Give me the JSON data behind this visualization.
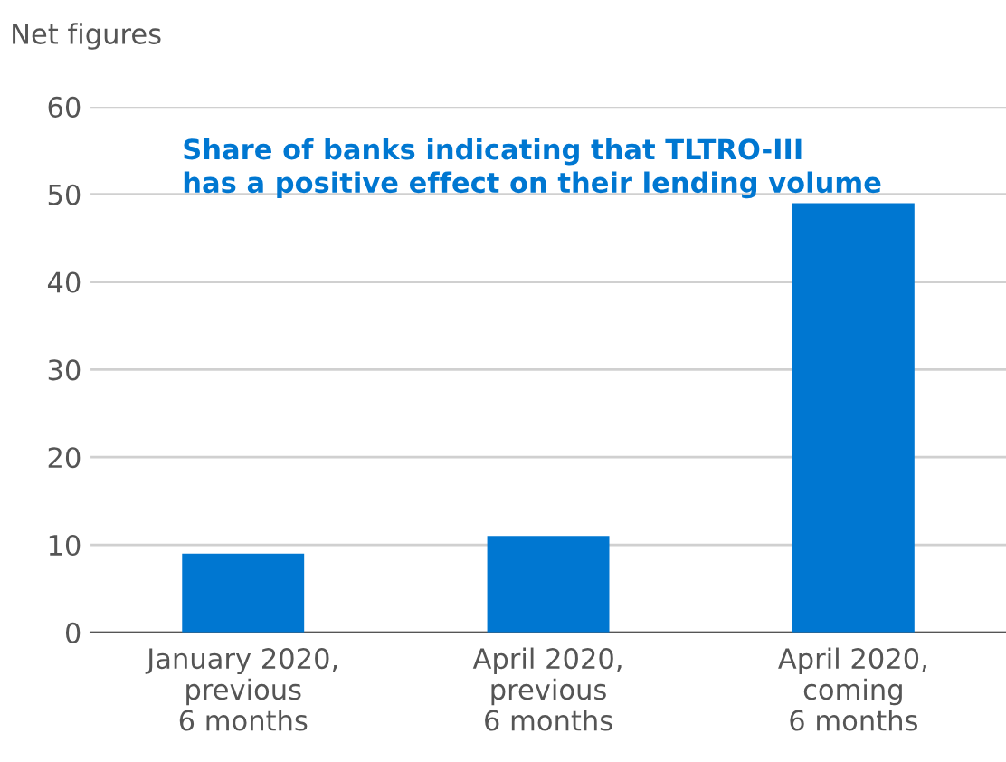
{
  "chart_data": {
    "type": "bar",
    "title": "Share of banks indicating that TLTRO-III\nhas a positive effect on their lending volume",
    "ylabel": "Net figures",
    "categories": [
      "January 2020,\nprevious\n6 months",
      "April 2020,\nprevious\n6 months",
      "April 2020,\ncoming\n6 months"
    ],
    "values": [
      9,
      11,
      49
    ],
    "color": "#0077d1",
    "ylim": [
      0,
      60
    ],
    "yticks": [
      0,
      10,
      20,
      30,
      40,
      50,
      60
    ],
    "grid": "y"
  }
}
